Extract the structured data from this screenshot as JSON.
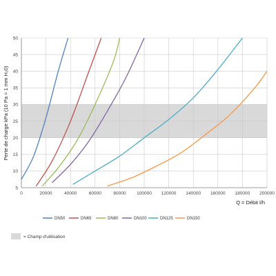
{
  "chart_data": {
    "type": "line",
    "title": "",
    "xlabel": "Q = Débit l/h",
    "ylabel": "Perte de charge kPa (10 Pa = 1 mm H₂0)",
    "xlim": [
      0,
      200000
    ],
    "ylim": [
      5,
      50
    ],
    "x_ticks": [
      "0",
      "20000",
      "40000",
      "60000",
      "80000",
      "100000",
      "120000",
      "140000",
      "160000",
      "180000",
      "200000"
    ],
    "y_ticks": [
      "5",
      "10",
      "15",
      "20",
      "25",
      "30",
      "35",
      "40",
      "45",
      "50"
    ],
    "grid": true,
    "band": {
      "y_from": 20,
      "y_to": 30,
      "color": "#d9d9d9",
      "label": "= Champ d'utilisation"
    },
    "legend_position": "bottom",
    "series": [
      {
        "name": "DN50",
        "color": "#4f81bd",
        "x": [
          0,
          10000,
          20000,
          30000,
          38000
        ],
        "y": [
          7.5,
          14.5,
          26,
          40,
          50
        ]
      },
      {
        "name": "DN65",
        "color": "#c0504d",
        "x": [
          12000,
          25000,
          40000,
          55000,
          65000
        ],
        "y": [
          5.5,
          13,
          25,
          40,
          50
        ]
      },
      {
        "name": "DN80",
        "color": "#9bbb59",
        "x": [
          17000,
          30000,
          45000,
          60000,
          75000,
          80000
        ],
        "y": [
          5.5,
          11,
          19,
          30,
          43,
          50
        ]
      },
      {
        "name": "DN100",
        "color": "#8064a2",
        "x": [
          25000,
          40000,
          55000,
          70000,
          85000,
          100000
        ],
        "y": [
          6.5,
          12,
          19,
          28,
          38,
          50
        ]
      },
      {
        "name": "DN125",
        "color": "#4bacc6",
        "x": [
          42000,
          60000,
          80000,
          100000,
          120000,
          140000,
          160000,
          180000
        ],
        "y": [
          6,
          10,
          14.5,
          20,
          25.5,
          32,
          40.5,
          50
        ]
      },
      {
        "name": "DN150",
        "color": "#f79646",
        "x": [
          70000,
          90000,
          110000,
          130000,
          150000,
          170000,
          190000,
          200000
        ],
        "y": [
          5.5,
          8,
          11.5,
          15.5,
          21,
          27,
          35,
          40
        ]
      }
    ]
  }
}
